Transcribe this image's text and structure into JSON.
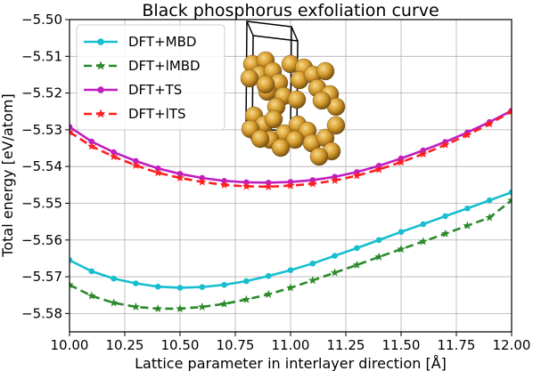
{
  "chart_data": {
    "type": "line",
    "title": "Black phosphorus exfoliation curve",
    "xlabel": "Lattice parameter in interlayer direction [Å]",
    "ylabel": "Total energy [eV/atom]",
    "xlim": [
      10.0,
      12.0
    ],
    "ylim": [
      -5.585,
      -5.5
    ],
    "xticks": [
      "10.00",
      "10.25",
      "10.50",
      "10.75",
      "11.00",
      "11.25",
      "11.50",
      "11.75",
      "12.00"
    ],
    "yticks": [
      "−5.58",
      "−5.57",
      "−5.56",
      "−5.55",
      "−5.54",
      "−5.53",
      "−5.52",
      "−5.51",
      "−5.50"
    ],
    "grid": true,
    "legend_position": "top-left",
    "x": [
      10.0,
      10.1,
      10.2,
      10.3,
      10.4,
      10.5,
      10.6,
      10.7,
      10.8,
      10.9,
      11.0,
      11.1,
      11.2,
      11.3,
      11.4,
      11.5,
      11.6,
      11.7,
      11.8,
      11.9,
      12.0
    ],
    "series": [
      {
        "name": "DFT+MBD",
        "color": "#17becf",
        "marker": "circle",
        "dash": "solid",
        "values": [
          -5.5655,
          -5.5685,
          -5.5705,
          -5.5718,
          -5.5727,
          -5.573,
          -5.5728,
          -5.5722,
          -5.5712,
          -5.5698,
          -5.5682,
          -5.5664,
          -5.5643,
          -5.5622,
          -5.56,
          -5.5578,
          -5.5557,
          -5.5535,
          -5.5514,
          -5.5492,
          -5.547
        ]
      },
      {
        "name": "DFT+lMBD",
        "color": "#2a8a2a",
        "marker": "star",
        "dash": "dashed",
        "values": [
          -5.5722,
          -5.5752,
          -5.5771,
          -5.5782,
          -5.5787,
          -5.5787,
          -5.5782,
          -5.5774,
          -5.5762,
          -5.5748,
          -5.573,
          -5.571,
          -5.5689,
          -5.5668,
          -5.5646,
          -5.5625,
          -5.5604,
          -5.5583,
          -5.5561,
          -5.5539,
          -5.5492
        ]
      },
      {
        "name": "DFT+TS",
        "color": "#c01ec0",
        "marker": "circle",
        "dash": "solid",
        "values": [
          -5.5292,
          -5.5332,
          -5.5361,
          -5.5385,
          -5.5405,
          -5.542,
          -5.5431,
          -5.5439,
          -5.5443,
          -5.5444,
          -5.5442,
          -5.5437,
          -5.5428,
          -5.5415,
          -5.5398,
          -5.5378,
          -5.5356,
          -5.5333,
          -5.5307,
          -5.5279,
          -5.5248
        ]
      },
      {
        "name": "DFT+lTS",
        "color": "#ff1f1f",
        "marker": "star",
        "dash": "dashed",
        "values": [
          -5.5306,
          -5.5345,
          -5.5373,
          -5.5397,
          -5.5417,
          -5.5431,
          -5.5442,
          -5.545,
          -5.5454,
          -5.5455,
          -5.5452,
          -5.5447,
          -5.5438,
          -5.5425,
          -5.5408,
          -5.5388,
          -5.5366,
          -5.5341,
          -5.5314,
          -5.5284,
          -5.525
        ]
      }
    ]
  }
}
